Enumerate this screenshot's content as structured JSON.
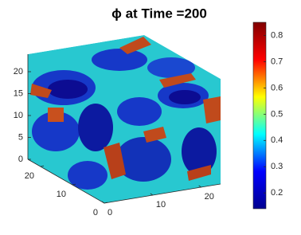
{
  "chart_data": {
    "type": "isosurface3d",
    "title": "ϕ at Time =200",
    "xlim": [
      0,
      24
    ],
    "xticks": [
      0,
      10,
      20
    ],
    "ylim": [
      0,
      24
    ],
    "yticks": [
      0,
      10,
      20
    ],
    "zlim": [
      0,
      24
    ],
    "zticks": [
      0,
      5,
      10,
      15,
      20
    ],
    "colormap": "jet",
    "clim": [
      0.14,
      0.85
    ],
    "cticks": [
      0.2,
      0.3,
      0.4,
      0.5,
      0.6,
      0.7,
      0.8
    ]
  }
}
